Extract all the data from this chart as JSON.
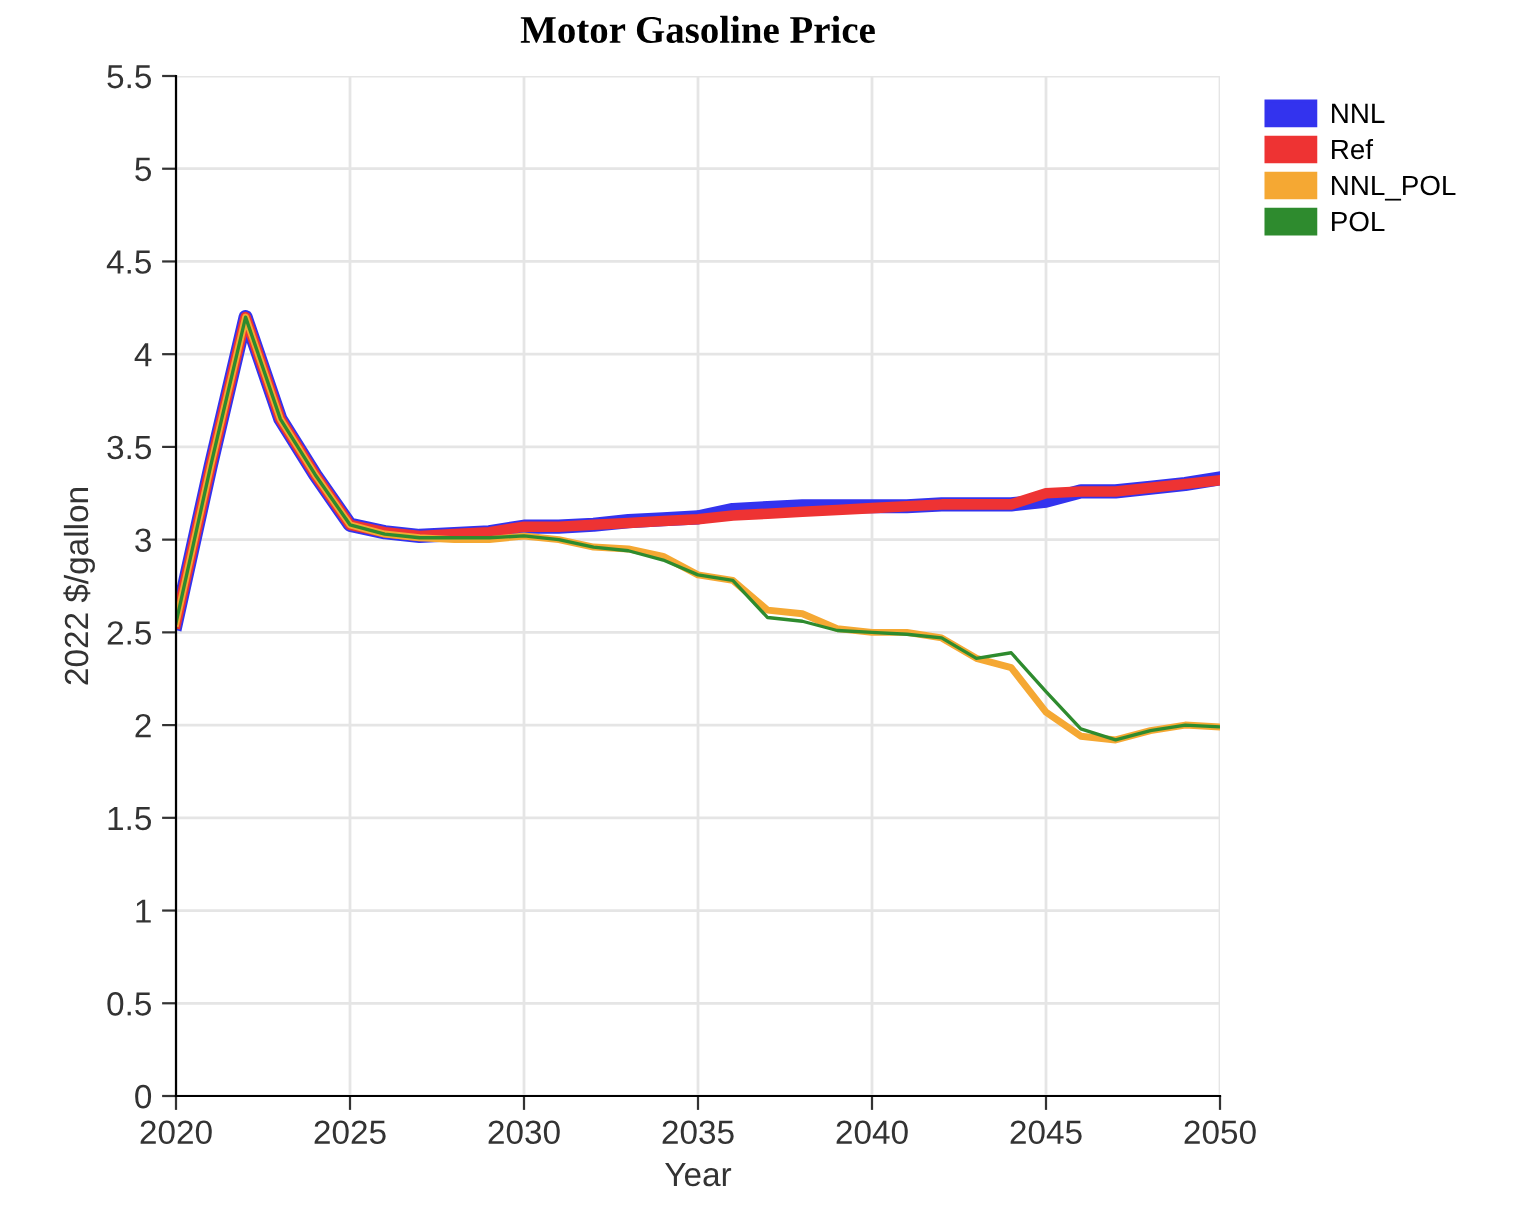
{
  "chart_data": {
    "type": "line",
    "title": "Motor Gasoline Price",
    "xlabel": "Year",
    "ylabel": "2022 $/gallon",
    "x": [
      2020,
      2021,
      2022,
      2023,
      2024,
      2025,
      2026,
      2027,
      2028,
      2029,
      2030,
      2031,
      2032,
      2033,
      2034,
      2035,
      2036,
      2037,
      2038,
      2039,
      2040,
      2041,
      2042,
      2043,
      2044,
      2045,
      2046,
      2047,
      2048,
      2049,
      2050
    ],
    "series": [
      {
        "name": "NNL",
        "color": "#3333ee",
        "values": [
          2.55,
          3.4,
          4.2,
          3.65,
          3.35,
          3.08,
          3.04,
          3.02,
          3.03,
          3.04,
          3.07,
          3.07,
          3.08,
          3.1,
          3.11,
          3.12,
          3.16,
          3.17,
          3.18,
          3.18,
          3.18,
          3.18,
          3.19,
          3.19,
          3.19,
          3.21,
          3.26,
          3.26,
          3.28,
          3.3,
          3.33
        ]
      },
      {
        "name": "Ref",
        "color": "#ee3333",
        "values": [
          2.55,
          3.4,
          4.2,
          3.65,
          3.35,
          3.08,
          3.04,
          3.02,
          3.03,
          3.04,
          3.07,
          3.07,
          3.08,
          3.09,
          3.1,
          3.11,
          3.13,
          3.14,
          3.15,
          3.16,
          3.17,
          3.18,
          3.19,
          3.19,
          3.19,
          3.25,
          3.26,
          3.26,
          3.28,
          3.3,
          3.32
        ]
      },
      {
        "name": "NNL_POL",
        "color": "#f5a833",
        "values": [
          2.55,
          3.4,
          4.2,
          3.65,
          3.35,
          3.08,
          3.03,
          3.01,
          3.0,
          3.0,
          3.02,
          3.0,
          2.96,
          2.95,
          2.91,
          2.81,
          2.78,
          2.62,
          2.6,
          2.52,
          2.5,
          2.5,
          2.47,
          2.36,
          2.31,
          2.07,
          1.94,
          1.92,
          1.97,
          2.0,
          1.99
        ]
      },
      {
        "name": "POL",
        "color": "#2e8b2e",
        "values": [
          2.55,
          3.4,
          4.2,
          3.65,
          3.35,
          3.08,
          3.03,
          3.01,
          3.01,
          3.01,
          3.02,
          3.0,
          2.96,
          2.94,
          2.89,
          2.81,
          2.78,
          2.58,
          2.56,
          2.51,
          2.5,
          2.49,
          2.47,
          2.36,
          2.39,
          2.18,
          1.98,
          1.92,
          1.97,
          2.0,
          1.99
        ]
      }
    ],
    "xlim": [
      2020,
      2050
    ],
    "xticks": [
      2020,
      2025,
      2030,
      2035,
      2040,
      2045,
      2050
    ],
    "ylim": [
      0,
      5.5
    ],
    "yticks": [
      0,
      0.5,
      1,
      1.5,
      2,
      2.5,
      3,
      3.5,
      4,
      4.5,
      5,
      5.5
    ],
    "grid": true,
    "legend": "top right",
    "marker": "none",
    "line_style": "solid"
  }
}
